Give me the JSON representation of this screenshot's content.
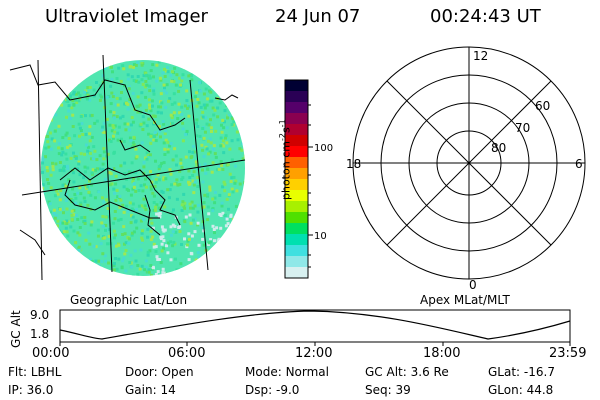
{
  "header": {
    "title": "Ultraviolet Imager",
    "date": "24 Jun 07",
    "time": "00:24:43 UT"
  },
  "colorbar": {
    "unit_label": "photon cm",
    "unit_exp1": "-2",
    "unit_mid": "s",
    "unit_exp2": "-1",
    "ticks": [
      "100",
      "10"
    ],
    "colors": [
      "#000033",
      "#2a0055",
      "#55006a",
      "#8a0050",
      "#b00030",
      "#d00000",
      "#ff0000",
      "#ff6000",
      "#ffa000",
      "#ffd000",
      "#e8ff00",
      "#a8f000",
      "#50e000",
      "#00e060",
      "#00e0b0",
      "#40e0e0",
      "#90e8e8",
      "#d8f0f0"
    ]
  },
  "polar_grid": {
    "mlt_labels": {
      "top": "12",
      "left": "18",
      "right": "6",
      "bottom": "0"
    },
    "lat_labels": [
      "60",
      "70",
      "80"
    ]
  },
  "captions": {
    "geographic": "Geographic Lat/Lon",
    "apex": "Apex MLat/MLT"
  },
  "altitude_plot": {
    "ylabel": "GC Alt",
    "yticks": [
      "9.0",
      "1.8"
    ],
    "xticks": [
      "00:00",
      "06:00",
      "12:00",
      "18:00",
      "23:59"
    ]
  },
  "info": {
    "filter_label": "Flt:",
    "filter": "LBHL",
    "ip_label": "IP:",
    "ip": "36.0",
    "door_label": "Door:",
    "door": "Open",
    "gain_label": "Gain:",
    "gain": "14",
    "mode_label": "Mode:",
    "mode": "Normal",
    "dsp_label": "Dsp:",
    "dsp": "-9.0",
    "gcalt_label": "GC Alt:",
    "gcalt": "3.6 Re",
    "seq_label": "Seq:",
    "seq": "39",
    "glat_label": "GLat:",
    "glat": "-16.7",
    "glon_label": "GLon:",
    "glon": "44.8"
  }
}
